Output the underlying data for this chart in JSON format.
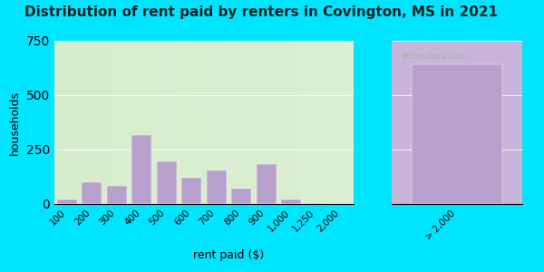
{
  "title": "Distribution of rent paid by renters in Covington, MS in 2021",
  "xlabel": "rent paid ($)",
  "ylabel": "households",
  "bar_color": "#b8a0cc",
  "background_outer": "#00e5ff",
  "ylim": [
    0,
    750
  ],
  "yticks": [
    0,
    250,
    500,
    750
  ],
  "categories_left": [
    "100",
    "200",
    "300",
    "400",
    "500",
    "600",
    "700",
    "800",
    "900",
    "1,000",
    "1,250",
    "2,000"
  ],
  "categories_right": [
    "> 2,000"
  ],
  "values_left": [
    20,
    100,
    85,
    315,
    195,
    120,
    155,
    70,
    185,
    20,
    5,
    0
  ],
  "values_right": [
    640
  ],
  "watermark": "City-Data.com",
  "title_fontsize": 11,
  "axis_fontsize": 9,
  "left_bg_color": "#d4eac8",
  "right_bg_color": "#c8b4d8"
}
